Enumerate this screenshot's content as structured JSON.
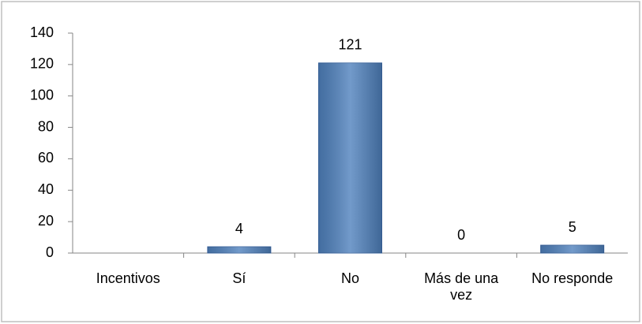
{
  "chart_data": {
    "type": "bar",
    "categories": [
      "Incentivos",
      "Sí",
      "No",
      "Más de una vez",
      "No responde"
    ],
    "values": [
      null,
      4,
      121,
      0,
      5
    ],
    "color": "#4f81bd",
    "ylim": [
      0,
      140
    ],
    "yticks": [
      0,
      20,
      40,
      60,
      80,
      100,
      120,
      140
    ],
    "grid": false
  }
}
